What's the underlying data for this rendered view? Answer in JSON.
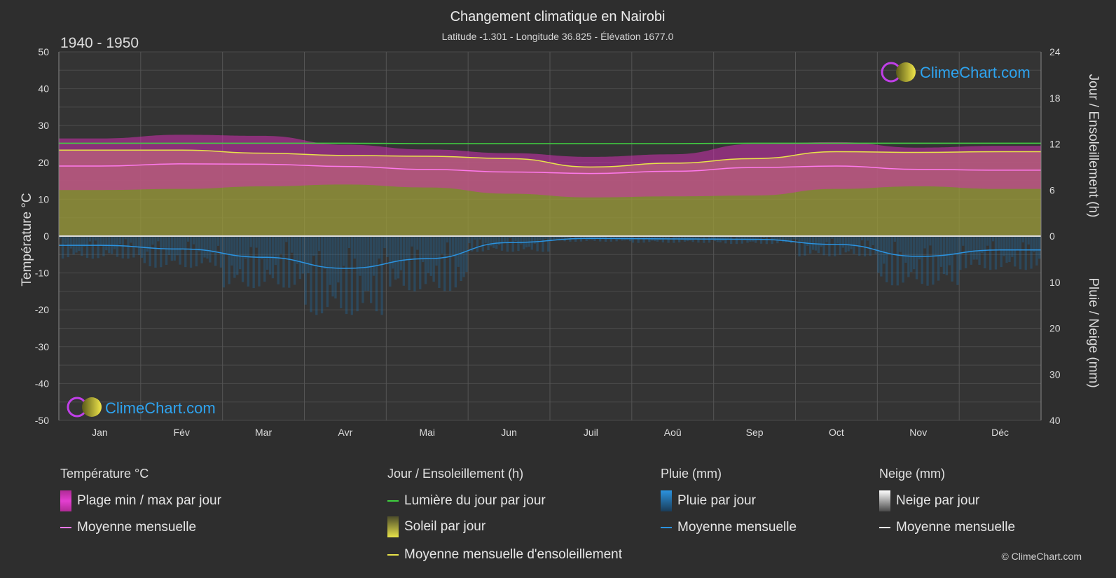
{
  "header": {
    "title": "Changement climatique en Nairobi",
    "subtitle": "Latitude -1.301 - Longitude 36.825 - Élévation 1677.0",
    "period": "1940 - 1950"
  },
  "brand": {
    "name": "ClimeChart.com",
    "copyright": "© ClimeChart.com"
  },
  "colors": {
    "background": "#2e2e2e",
    "temp_range": "#d22fb0",
    "temp_mean": "#ff79ec",
    "daylight": "#3ed13e",
    "sunshine_fill": "#9d9d3a",
    "sunshine_mean": "#e8e34a",
    "rain": "#1f6fa8",
    "rain_mean": "#2b93e0",
    "snow_mean": "#ffffff"
  },
  "chart_data": {
    "type": "area",
    "categories": [
      "Jan",
      "Fév",
      "Mar",
      "Avr",
      "Mai",
      "Jun",
      "Juil",
      "Aoû",
      "Sep",
      "Oct",
      "Nov",
      "Déc"
    ],
    "axes": {
      "left": {
        "label": "Température °C",
        "range": [
          -50,
          50
        ],
        "ticks": [
          "50",
          "40",
          "30",
          "20",
          "10",
          "0",
          "-10",
          "-20",
          "-30",
          "-40",
          "-50"
        ]
      },
      "right_top": {
        "label": "Jour / Ensoleillement (h)",
        "range": [
          0,
          24
        ],
        "ticks": [
          "24",
          "18",
          "12",
          "6",
          "0"
        ]
      },
      "right_bottom": {
        "label": "Pluie / Neige (mm)",
        "range": [
          0,
          40
        ],
        "ticks": [
          "0",
          "10",
          "20",
          "30",
          "40"
        ]
      }
    },
    "grid": true,
    "series": [
      {
        "name": "Plage min / max par jour",
        "kind": "band",
        "unit": "°C",
        "min": [
          12.5,
          12.8,
          13.5,
          14.0,
          13.2,
          11.5,
          10.5,
          10.8,
          11.0,
          12.8,
          13.5,
          12.8
        ],
        "max": [
          26.5,
          27.5,
          27.2,
          24.8,
          23.5,
          22.5,
          21.5,
          22.2,
          25.0,
          25.5,
          24.0,
          24.5
        ]
      },
      {
        "name": "Moyenne mensuelle",
        "kind": "line",
        "unit": "°C",
        "group": "Température °C",
        "values": [
          19.0,
          19.6,
          19.5,
          18.9,
          18.1,
          17.4,
          17.0,
          17.6,
          18.6,
          19.0,
          18.1,
          17.9
        ]
      },
      {
        "name": "Lumière du jour par jour",
        "kind": "line",
        "unit": "h",
        "values": [
          12.1,
          12.1,
          12.1,
          12.1,
          12.05,
          12.05,
          12.05,
          12.05,
          12.1,
          12.1,
          12.1,
          12.1
        ]
      },
      {
        "name": "Soleil par jour",
        "kind": "area",
        "unit": "h",
        "values": [
          11.2,
          11.2,
          10.8,
          10.5,
          10.4,
          10.1,
          9.0,
          9.5,
          10.1,
          11.0,
          10.9,
          11.0
        ]
      },
      {
        "name": "Moyenne mensuelle d'ensoleillement",
        "kind": "line",
        "unit": "h",
        "values": [
          11.2,
          11.2,
          10.8,
          10.5,
          10.4,
          10.1,
          9.0,
          9.5,
          10.1,
          11.0,
          10.9,
          11.0
        ]
      },
      {
        "name": "Pluie par jour",
        "kind": "bars",
        "unit": "mm",
        "values": [
          2.0,
          2.8,
          4.6,
          7.0,
          4.9,
          1.4,
          0.5,
          0.6,
          0.7,
          1.8,
          4.4,
          3.0
        ]
      },
      {
        "name": "Moyenne mensuelle",
        "kind": "line",
        "unit": "mm",
        "group": "Pluie (mm)",
        "values": [
          2.0,
          2.8,
          4.6,
          7.0,
          4.9,
          1.4,
          0.5,
          0.6,
          0.7,
          1.8,
          4.4,
          3.0
        ]
      },
      {
        "name": "Neige par jour",
        "kind": "bars",
        "unit": "mm",
        "values": [
          0,
          0,
          0,
          0,
          0,
          0,
          0,
          0,
          0,
          0,
          0,
          0
        ]
      },
      {
        "name": "Moyenne mensuelle",
        "kind": "line",
        "unit": "mm",
        "group": "Neige (mm)",
        "values": [
          0,
          0,
          0,
          0,
          0,
          0,
          0,
          0,
          0,
          0,
          0,
          0
        ]
      }
    ]
  },
  "legend": {
    "temperature": {
      "heading": "Température °C",
      "range_label": "Plage min / max par jour",
      "mean_label": "Moyenne mensuelle"
    },
    "sun": {
      "heading": "Jour / Ensoleillement (h)",
      "daylight_label": "Lumière du jour par jour",
      "sunshine_label": "Soleil par jour",
      "sun_mean_label": "Moyenne mensuelle d'ensoleillement"
    },
    "rain": {
      "heading": "Pluie (mm)",
      "rain_label": "Pluie par jour",
      "mean_label": "Moyenne mensuelle"
    },
    "snow": {
      "heading": "Neige (mm)",
      "snow_label": "Neige par jour",
      "mean_label": "Moyenne mensuelle"
    }
  }
}
